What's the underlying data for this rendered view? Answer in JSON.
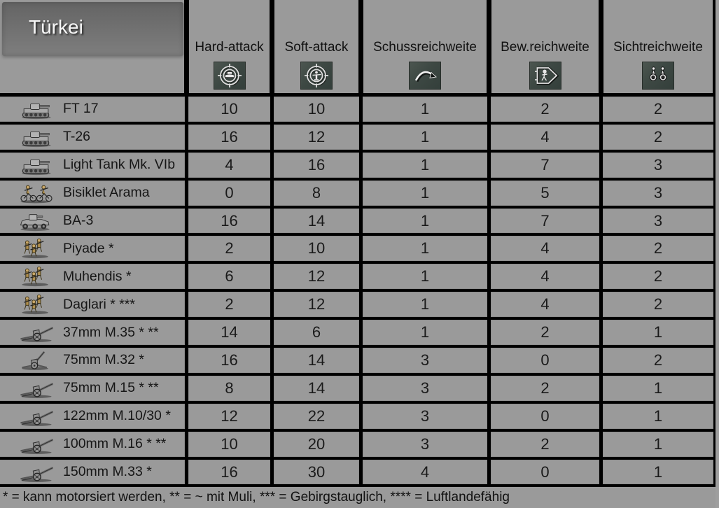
{
  "title": "Türkei",
  "columns": [
    {
      "label": "Hard-attack",
      "icon": "hard-attack-icon"
    },
    {
      "label": "Soft-attack",
      "icon": "soft-attack-icon"
    },
    {
      "label": "Schussreichweite",
      "icon": "firing-range-icon"
    },
    {
      "label": "Bew.reichweite",
      "icon": "movement-range-icon"
    },
    {
      "label": "Sichtreichweite",
      "icon": "sight-range-icon"
    }
  ],
  "units": [
    {
      "name": "FT 17",
      "icon": "tank",
      "values": [
        10,
        10,
        1,
        2,
        2
      ]
    },
    {
      "name": "T-26",
      "icon": "tank",
      "values": [
        16,
        12,
        1,
        4,
        2
      ]
    },
    {
      "name": "Light Tank Mk. VIb",
      "icon": "tank",
      "values": [
        4,
        16,
        1,
        7,
        3
      ]
    },
    {
      "name": "Bisiklet Arama",
      "icon": "bicycle",
      "values": [
        0,
        8,
        1,
        5,
        3
      ]
    },
    {
      "name": "BA-3",
      "icon": "armored-car",
      "values": [
        16,
        14,
        1,
        7,
        3
      ]
    },
    {
      "name": "Piyade *",
      "icon": "infantry",
      "values": [
        2,
        10,
        1,
        4,
        2
      ]
    },
    {
      "name": "Muhendis *",
      "icon": "infantry",
      "values": [
        6,
        12,
        1,
        4,
        2
      ]
    },
    {
      "name": "Daglari * ***",
      "icon": "infantry",
      "values": [
        2,
        12,
        1,
        4,
        2
      ]
    },
    {
      "name": "37mm M.35 * **",
      "icon": "artillery",
      "values": [
        14,
        6,
        1,
        2,
        1
      ]
    },
    {
      "name": "75mm M.32 *",
      "icon": "aa-gun",
      "values": [
        16,
        14,
        3,
        0,
        2
      ]
    },
    {
      "name": "75mm M.15 * **",
      "icon": "artillery",
      "values": [
        8,
        14,
        3,
        2,
        1
      ]
    },
    {
      "name": "122mm M.10/30 *",
      "icon": "artillery",
      "values": [
        12,
        22,
        3,
        0,
        1
      ]
    },
    {
      "name": "100mm M.16 * **",
      "icon": "artillery",
      "values": [
        10,
        20,
        3,
        2,
        1
      ]
    },
    {
      "name": "150mm M.33 *",
      "icon": "artillery",
      "values": [
        16,
        30,
        4,
        0,
        1
      ]
    }
  ],
  "footer_note": "* = kann motorsiert werden, ** = ~ mit Muli, *** = Gebirgstauglich, **** = Luftlandefähig",
  "colors": {
    "table_gray": "#9a9a9a",
    "grid_black": "#000000",
    "title_box_gray": "#707070",
    "icon_tile_green": "#3d4843",
    "text_dark": "#151515",
    "icon_silver": "#e2e2e2"
  }
}
